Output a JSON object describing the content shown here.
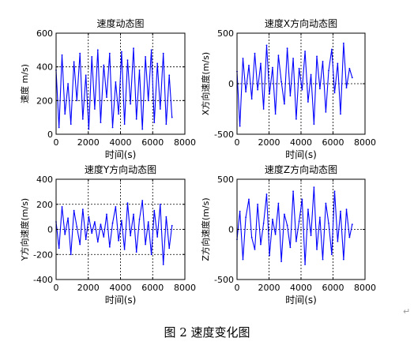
{
  "chart_data": [
    {
      "type": "line",
      "title": "速度动态图",
      "xlabel": "时间(s)",
      "ylabel": "速度 m/s)",
      "xlim": [
        0,
        8000
      ],
      "ylim": [
        0,
        600
      ],
      "xticks": [
        0,
        2000,
        4000,
        6000,
        8000
      ],
      "yticks": [
        0,
        200,
        400,
        600
      ],
      "grid": true,
      "series": [
        {
          "color": "#0000ff",
          "x": [
            0,
            180,
            370,
            550,
            740,
            920,
            1110,
            1290,
            1480,
            1660,
            1850,
            2030,
            2220,
            2400,
            2590,
            2770,
            2960,
            3140,
            3330,
            3510,
            3700,
            3880,
            4070,
            4250,
            4440,
            4620,
            4810,
            4990,
            5180,
            5360,
            5550,
            5730,
            5920,
            6100,
            6290,
            6470,
            6660,
            6840,
            7030,
            7200
          ],
          "y": [
            380,
            40,
            470,
            120,
            300,
            60,
            430,
            200,
            480,
            90,
            350,
            30,
            460,
            150,
            500,
            70,
            410,
            220,
            480,
            40,
            310,
            120,
            490,
            60,
            440,
            180,
            510,
            90,
            380,
            30,
            460,
            200,
            500,
            70,
            420,
            150,
            480,
            60,
            350,
            100
          ]
        }
      ]
    },
    {
      "type": "line",
      "title": "速度X方向动态图",
      "xlabel": "时间(s)",
      "ylabel": "X方向速度(m/s)",
      "xlim": [
        0,
        8000
      ],
      "ylim": [
        -500,
        500
      ],
      "xticks": [
        0,
        2000,
        4000,
        6000,
        8000
      ],
      "yticks": [
        -500,
        0,
        500
      ],
      "grid": true,
      "series": [
        {
          "color": "#0000ff",
          "x": [
            0,
            180,
            370,
            550,
            740,
            920,
            1110,
            1290,
            1480,
            1660,
            1850,
            2030,
            2220,
            2400,
            2590,
            2770,
            2960,
            3140,
            3330,
            3510,
            3700,
            3880,
            4070,
            4250,
            4440,
            4620,
            4810,
            4990,
            5180,
            5360,
            5550,
            5730,
            5920,
            6100,
            6290,
            6470,
            6660,
            6840,
            7030,
            7200
          ],
          "y": [
            120,
            -420,
            250,
            -80,
            180,
            -150,
            300,
            -60,
            200,
            -250,
            380,
            -100,
            160,
            -300,
            280,
            20,
            -200,
            350,
            -120,
            250,
            -350,
            150,
            -60,
            320,
            -180,
            90,
            -400,
            270,
            -50,
            220,
            -280,
            130,
            340,
            -90,
            200,
            -300,
            400,
            -40,
            150,
            60
          ]
        }
      ]
    },
    {
      "type": "line",
      "title": "速度Y方向动态图",
      "xlabel": "时间(s)",
      "ylabel": "Y方向速度(m/s)",
      "xlim": [
        0,
        8000
      ],
      "ylim": [
        -400,
        400
      ],
      "xticks": [
        0,
        2000,
        4000,
        6000,
        8000
      ],
      "yticks": [
        -400,
        -200,
        0,
        200,
        400
      ],
      "grid": true,
      "series": [
        {
          "color": "#0000ff",
          "x": [
            0,
            180,
            370,
            550,
            740,
            920,
            1110,
            1290,
            1480,
            1660,
            1850,
            2030,
            2220,
            2400,
            2590,
            2770,
            2960,
            3140,
            3330,
            3510,
            3700,
            3880,
            4070,
            4250,
            4440,
            4620,
            4810,
            4990,
            5180,
            5360,
            5550,
            5730,
            5920,
            6100,
            6290,
            6470,
            6660,
            6840,
            7030,
            7200
          ],
          "y": [
            60,
            -150,
            180,
            -40,
            90,
            -200,
            150,
            20,
            -120,
            160,
            -80,
            100,
            -30,
            60,
            -100,
            40,
            -60,
            120,
            -140,
            50,
            180,
            -90,
            70,
            -160,
            210,
            -50,
            120,
            -180,
            80,
            230,
            -120,
            60,
            -200,
            150,
            -60,
            200,
            -280,
            100,
            -150,
            30
          ]
        }
      ]
    },
    {
      "type": "line",
      "title": "速度Z方向动态图",
      "xlabel": "时间(s)",
      "ylabel": "Z方向速度(m/s)",
      "xlim": [
        0,
        8000
      ],
      "ylim": [
        -500,
        500
      ],
      "xticks": [
        0,
        2000,
        4000,
        6000,
        8000
      ],
      "yticks": [
        -500,
        0,
        500
      ],
      "grid": true,
      "series": [
        {
          "color": "#0000ff",
          "x": [
            0,
            180,
            370,
            550,
            740,
            920,
            1110,
            1290,
            1480,
            1660,
            1850,
            2030,
            2220,
            2400,
            2590,
            2770,
            2960,
            3140,
            3330,
            3510,
            3700,
            3880,
            4070,
            4250,
            4440,
            4620,
            4810,
            4990,
            5180,
            5360,
            5550,
            5730,
            5920,
            6100,
            6290,
            6470,
            6660,
            6840,
            7030,
            7200
          ],
          "y": [
            -100,
            180,
            -300,
            120,
            300,
            -80,
            -200,
            250,
            -150,
            60,
            350,
            -260,
            100,
            -50,
            260,
            -320,
            150,
            40,
            -180,
            380,
            -120,
            80,
            300,
            -350,
            200,
            -60,
            420,
            -200,
            120,
            -300,
            260,
            60,
            -250,
            380,
            -120,
            180,
            -300,
            200,
            -80,
            50
          ]
        }
      ]
    }
  ],
  "caption": "图 2  速度变化图",
  "return_mark": "↵"
}
